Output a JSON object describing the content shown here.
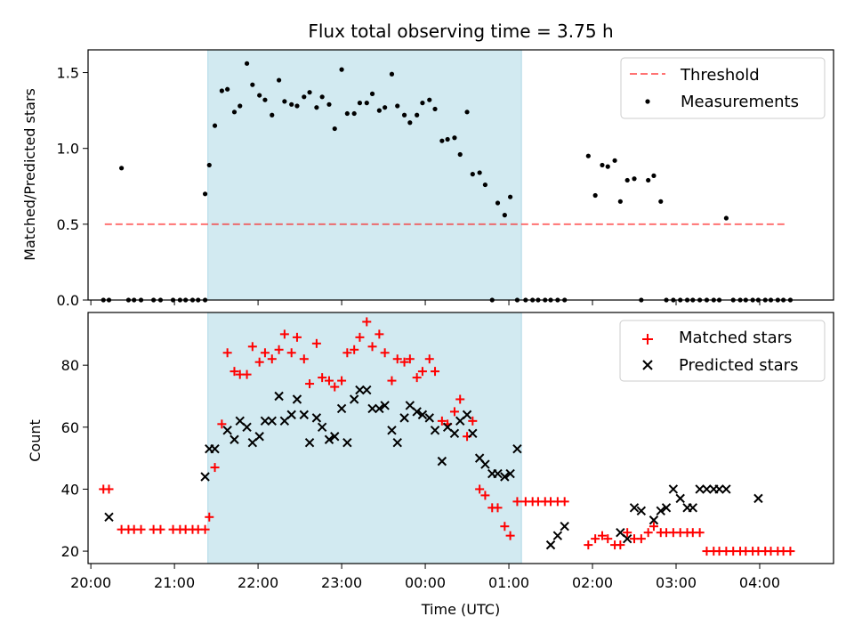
{
  "title": "Flux total observing time = 3.75 h",
  "colors": {
    "shade": "#add8e6",
    "threshold": "#ff0000",
    "matched": "#ff0000",
    "predicted": "#000000",
    "measurement": "#000000"
  },
  "shaded_interval": [
    "21:24",
    "01:09"
  ],
  "chart_data": [
    {
      "type": "scatter",
      "ylabel": "Matched/Predicted stars",
      "xlim": [
        "19:58",
        "04:53"
      ],
      "ylim": [
        0,
        1.65
      ],
      "yticks": [
        "0.0",
        "0.5",
        "1.0",
        "1.5"
      ],
      "legend_position": "top-right",
      "threshold": {
        "name": "Threshold",
        "y": 0.5,
        "x_range": [
          "20:10",
          "04:20"
        ]
      },
      "series": [
        {
          "name": "Measurements",
          "x": [
            "20:09",
            "20:13",
            "20:22",
            "20:27",
            "20:31",
            "20:36",
            "20:45",
            "20:50",
            "20:59",
            "21:04",
            "21:08",
            "21:13",
            "21:17",
            "21:22",
            "21:22",
            "21:25",
            "21:29",
            "21:34",
            "21:38",
            "21:43",
            "21:47",
            "21:52",
            "21:56",
            "22:01",
            "22:05",
            "22:10",
            "22:15",
            "22:19",
            "22:24",
            "22:28",
            "22:33",
            "22:37",
            "22:42",
            "22:46",
            "22:51",
            "22:55",
            "23:00",
            "23:04",
            "23:09",
            "23:13",
            "23:18",
            "23:22",
            "23:27",
            "23:31",
            "23:36",
            "23:40",
            "23:45",
            "23:49",
            "23:54",
            "23:58",
            "00:03",
            "00:07",
            "00:12",
            "00:16",
            "00:21",
            "00:25",
            "00:30",
            "00:34",
            "00:39",
            "00:43",
            "00:48",
            "00:52",
            "00:57",
            "01:01",
            "01:06",
            "01:12",
            "01:17",
            "01:21",
            "01:26",
            "01:30",
            "01:35",
            "01:40",
            "01:57",
            "02:02",
            "02:07",
            "02:11",
            "02:16",
            "02:20",
            "02:25",
            "02:30",
            "02:35",
            "02:40",
            "02:44",
            "02:49",
            "02:53",
            "02:58",
            "03:03",
            "03:08",
            "03:12",
            "03:17",
            "03:22",
            "03:27",
            "03:31",
            "03:36",
            "03:41",
            "03:46",
            "03:50",
            "03:55",
            "03:59",
            "04:04",
            "04:08",
            "04:13",
            "04:17",
            "04:22"
          ],
          "y": [
            0,
            0,
            0.87,
            0,
            0,
            0,
            0,
            0,
            0,
            0,
            0,
            0,
            0,
            0,
            0.7,
            0.89,
            1.15,
            1.38,
            1.39,
            1.24,
            1.28,
            1.56,
            1.42,
            1.35,
            1.32,
            1.22,
            1.45,
            1.31,
            1.29,
            1.28,
            1.34,
            1.37,
            1.27,
            1.34,
            1.29,
            1.13,
            1.52,
            1.23,
            1.23,
            1.3,
            1.3,
            1.36,
            1.25,
            1.27,
            1.49,
            1.28,
            1.22,
            1.17,
            1.22,
            1.3,
            1.32,
            1.26,
            1.05,
            1.06,
            1.07,
            0.96,
            1.24,
            0.83,
            0.84,
            0.76,
            0,
            0.64,
            0.56,
            0.68,
            0,
            0,
            0,
            0,
            0,
            0,
            0,
            0,
            0.95,
            0.69,
            0.89,
            0.88,
            0.92,
            0.65,
            0.79,
            0.8,
            0,
            0.79,
            0.82,
            0.65,
            0,
            0,
            0,
            0,
            0,
            0,
            0,
            0,
            0,
            0.54,
            0,
            0,
            0,
            0,
            0,
            0,
            0,
            0,
            0,
            0
          ]
        }
      ]
    },
    {
      "type": "scatter",
      "xlabel": "Time (UTC)",
      "ylabel": "Count",
      "xlim": [
        "19:58",
        "04:53"
      ],
      "ylim": [
        16,
        97
      ],
      "xticks": [
        "20:00",
        "21:00",
        "22:00",
        "23:00",
        "00:00",
        "01:00",
        "02:00",
        "03:00",
        "04:00"
      ],
      "yticks": [
        "20",
        "40",
        "60",
        "80"
      ],
      "legend_position": "top-right",
      "series": [
        {
          "name": "Matched stars",
          "marker": "+",
          "x": [
            "20:09",
            "20:13",
            "20:22",
            "20:27",
            "20:31",
            "20:36",
            "20:45",
            "20:50",
            "20:59",
            "21:04",
            "21:08",
            "21:13",
            "21:17",
            "21:22",
            "21:25",
            "21:29",
            "21:34",
            "21:38",
            "21:43",
            "21:47",
            "21:52",
            "21:56",
            "22:01",
            "22:05",
            "22:10",
            "22:15",
            "22:19",
            "22:24",
            "22:28",
            "22:33",
            "22:37",
            "22:42",
            "22:46",
            "22:51",
            "22:55",
            "23:00",
            "23:04",
            "23:09",
            "23:13",
            "23:18",
            "23:22",
            "23:27",
            "23:31",
            "23:36",
            "23:40",
            "23:45",
            "23:49",
            "23:54",
            "23:58",
            "00:03",
            "00:07",
            "00:12",
            "00:16",
            "00:21",
            "00:25",
            "00:30",
            "00:34",
            "00:39",
            "00:43",
            "00:48",
            "00:52",
            "00:57",
            "01:01",
            "01:06",
            "01:12",
            "01:17",
            "01:21",
            "01:26",
            "01:30",
            "01:35",
            "01:40",
            "01:57",
            "02:02",
            "02:07",
            "02:11",
            "02:16",
            "02:20",
            "02:25",
            "02:30",
            "02:35",
            "02:40",
            "02:44",
            "02:49",
            "02:53",
            "02:58",
            "03:03",
            "03:08",
            "03:12",
            "03:17",
            "03:22",
            "03:27",
            "03:31",
            "03:36",
            "03:41",
            "03:46",
            "03:50",
            "03:55",
            "03:59",
            "04:04",
            "04:08",
            "04:13",
            "04:17",
            "04:22"
          ],
          "y": [
            40,
            40,
            27,
            27,
            27,
            27,
            27,
            27,
            27,
            27,
            27,
            27,
            27,
            27,
            31,
            47,
            61,
            84,
            78,
            77,
            77,
            86,
            81,
            84,
            82,
            85,
            90,
            84,
            89,
            82,
            74,
            87,
            76,
            75,
            73,
            75,
            84,
            85,
            89,
            94,
            86,
            90,
            84,
            75,
            82,
            81,
            82,
            76,
            78,
            82,
            78,
            62,
            61,
            65,
            69,
            57,
            62,
            40,
            38,
            34,
            34,
            28,
            25,
            36,
            36,
            36,
            36,
            36,
            36,
            36,
            36,
            22,
            24,
            25,
            24,
            22,
            22,
            26,
            24,
            24,
            26,
            28,
            26,
            26,
            26,
            26,
            26,
            26,
            26,
            20,
            20,
            20,
            20,
            20,
            20,
            20,
            20,
            20,
            20,
            20,
            20,
            20,
            20
          ]
        },
        {
          "name": "Predicted stars",
          "marker": "x",
          "x": [
            "20:13",
            "21:22",
            "21:25",
            "21:29",
            "21:38",
            "21:43",
            "21:47",
            "21:52",
            "21:56",
            "22:01",
            "22:05",
            "22:10",
            "22:15",
            "22:19",
            "22:24",
            "22:28",
            "22:33",
            "22:37",
            "22:42",
            "22:46",
            "22:51",
            "22:55",
            "23:00",
            "23:04",
            "23:09",
            "23:13",
            "23:18",
            "23:22",
            "23:27",
            "23:31",
            "23:36",
            "23:40",
            "23:45",
            "23:49",
            "23:54",
            "23:58",
            "00:03",
            "00:07",
            "00:12",
            "00:16",
            "00:21",
            "00:25",
            "00:30",
            "00:34",
            "00:39",
            "00:43",
            "00:48",
            "00:52",
            "00:57",
            "01:01",
            "01:06",
            "01:30",
            "01:35",
            "01:40",
            "02:20",
            "02:25",
            "02:30",
            "02:35",
            "02:44",
            "02:49",
            "02:53",
            "02:58",
            "03:03",
            "03:08",
            "03:12",
            "03:17",
            "03:22",
            "03:27",
            "03:31",
            "03:36",
            "03:59"
          ],
          "y": [
            31,
            44,
            53,
            53,
            59,
            56,
            62,
            60,
            55,
            57,
            62,
            62,
            70,
            62,
            64,
            69,
            64,
            55,
            63,
            60,
            56,
            57,
            66,
            55,
            69,
            72,
            72,
            66,
            66,
            67,
            59,
            55,
            63,
            67,
            65,
            64,
            63,
            59,
            49,
            60,
            58,
            62,
            64,
            58,
            50,
            48,
            45,
            45,
            44,
            45,
            53,
            22,
            25,
            28,
            26,
            24,
            34,
            33,
            30,
            33,
            34,
            40,
            37,
            34,
            34,
            40,
            40,
            40,
            40,
            40,
            37
          ]
        }
      ]
    }
  ]
}
